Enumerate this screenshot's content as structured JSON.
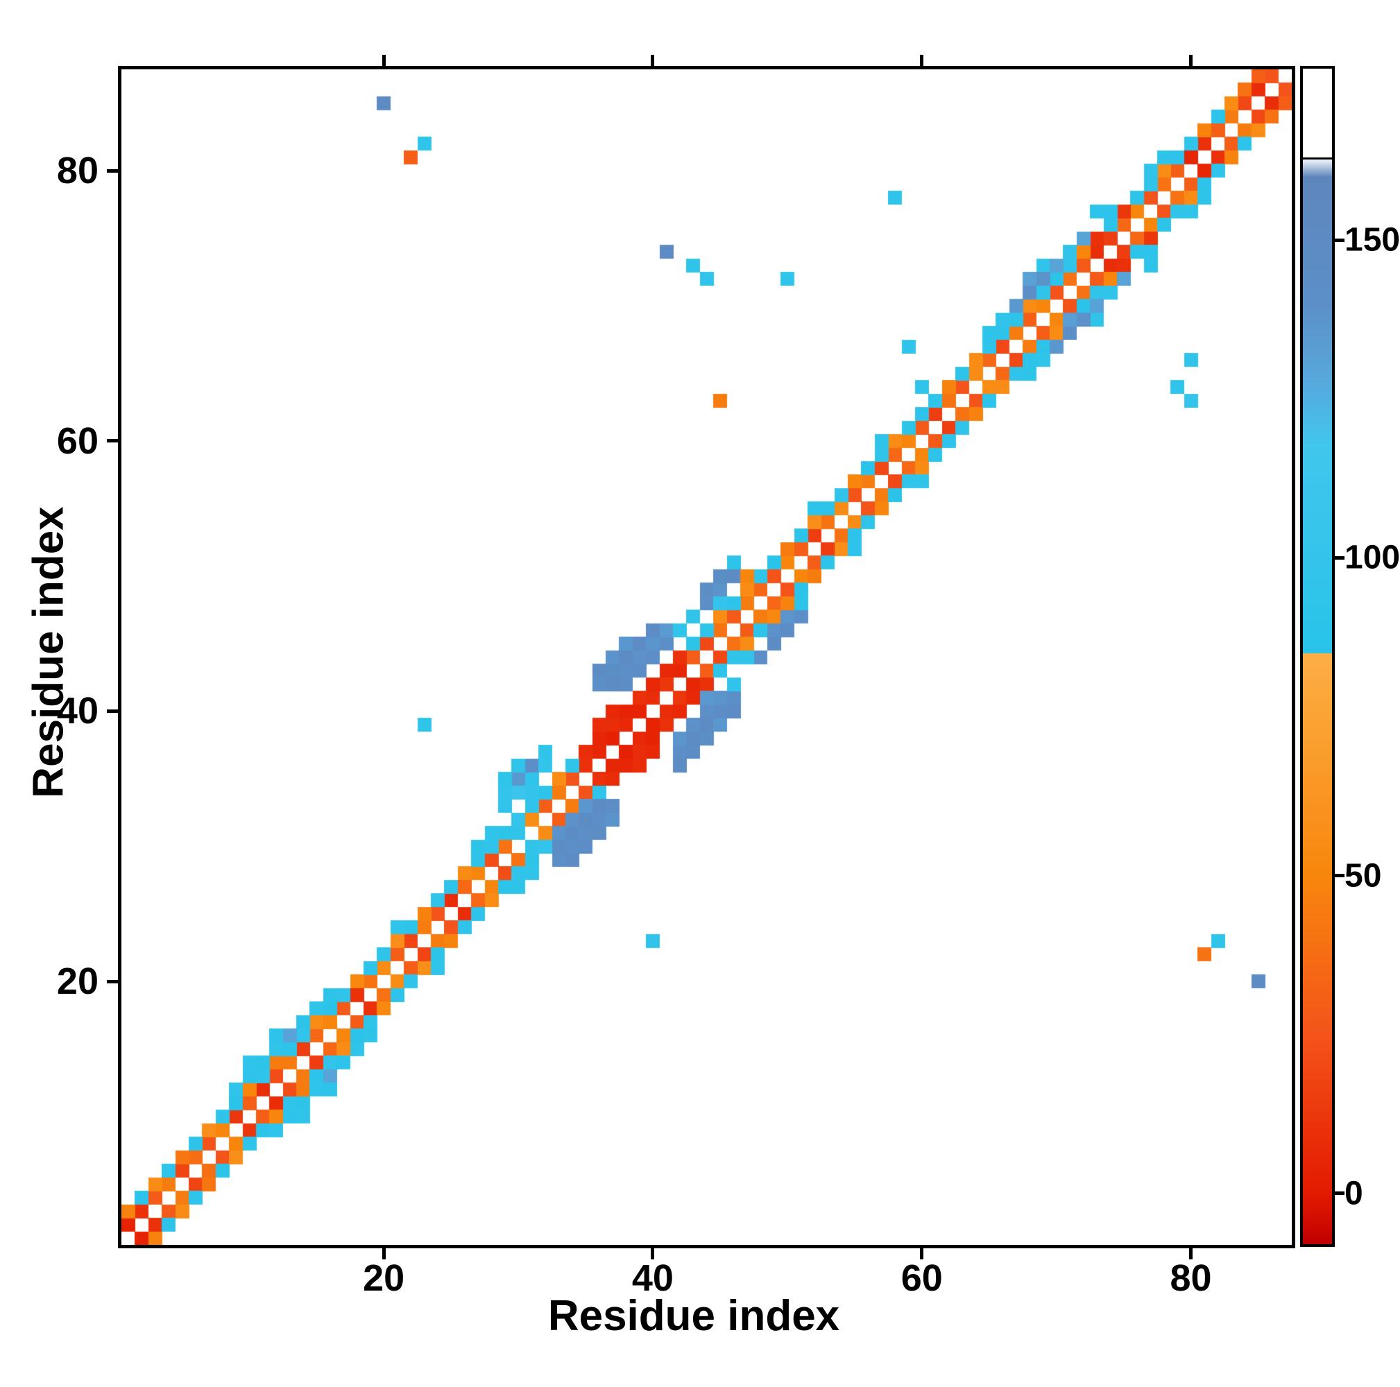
{
  "figure": {
    "xlabel": "Residue index",
    "ylabel": "Residue index"
  },
  "chart_data": {
    "type": "heatmap",
    "title": "",
    "xlabel": "Residue index",
    "ylabel": "Residue index",
    "x_ticks": [
      20,
      40,
      60,
      80
    ],
    "y_ticks": [
      20,
      40,
      60,
      80
    ],
    "n_residues": 87,
    "axis_range": [
      0.5,
      87.5
    ],
    "grid": false,
    "legend_position": "right-colorbar",
    "colorbar": {
      "ticks": [
        0,
        50,
        100,
        150
      ],
      "range": [
        -8,
        177
      ],
      "stops": [
        [
          -8,
          "#c00000"
        ],
        [
          0,
          "#e41a00"
        ],
        [
          25,
          "#f4541a"
        ],
        [
          50,
          "#f8860d"
        ],
        [
          85,
          "#fcaf46"
        ],
        [
          85.01,
          "#29c3ea"
        ],
        [
          118,
          "#41c6ec"
        ],
        [
          128,
          "#57a8dc"
        ],
        [
          140,
          "#5c8fc8"
        ],
        [
          160,
          "#5e86bd"
        ],
        [
          163,
          "#ffffff"
        ],
        [
          177,
          "#ffffff"
        ]
      ],
      "separator_value": 163
    },
    "band_cells_symmetric": [
      [
        1,
        2,
        4
      ],
      [
        2,
        3,
        10
      ],
      [
        3,
        4,
        28
      ],
      [
        4,
        5,
        45
      ],
      [
        5,
        6,
        18
      ],
      [
        6,
        7,
        38
      ],
      [
        7,
        8,
        25
      ],
      [
        8,
        9,
        50
      ],
      [
        9,
        10,
        12
      ],
      [
        10,
        11,
        30
      ],
      [
        11,
        12,
        8
      ],
      [
        12,
        13,
        22
      ],
      [
        13,
        14,
        45
      ],
      [
        14,
        15,
        15
      ],
      [
        15,
        16,
        35
      ],
      [
        16,
        17,
        50
      ],
      [
        17,
        18,
        28
      ],
      [
        18,
        19,
        10
      ],
      [
        19,
        20,
        40
      ],
      [
        20,
        21,
        55
      ],
      [
        21,
        22,
        30
      ],
      [
        22,
        23,
        18
      ],
      [
        23,
        24,
        45
      ],
      [
        24,
        25,
        25
      ],
      [
        25,
        26,
        8
      ],
      [
        26,
        27,
        35
      ],
      [
        27,
        28,
        50
      ],
      [
        28,
        29,
        22
      ],
      [
        29,
        30,
        40
      ],
      [
        30,
        31,
        95
      ],
      [
        31,
        32,
        55
      ],
      [
        32,
        33,
        30
      ],
      [
        33,
        34,
        45
      ],
      [
        34,
        35,
        25
      ],
      [
        35,
        36,
        10
      ],
      [
        36,
        37,
        5
      ],
      [
        37,
        38,
        3
      ],
      [
        38,
        39,
        6
      ],
      [
        39,
        40,
        4
      ],
      [
        40,
        41,
        8
      ],
      [
        41,
        42,
        12
      ],
      [
        42,
        43,
        5
      ],
      [
        43,
        44,
        30
      ],
      [
        44,
        45,
        20
      ],
      [
        45,
        46,
        40
      ],
      [
        46,
        47,
        28
      ],
      [
        47,
        48,
        45
      ],
      [
        48,
        49,
        35
      ],
      [
        49,
        50,
        25
      ],
      [
        50,
        51,
        50
      ],
      [
        51,
        52,
        30
      ],
      [
        52,
        53,
        15
      ],
      [
        53,
        54,
        40
      ],
      [
        54,
        55,
        55
      ],
      [
        55,
        56,
        25
      ],
      [
        56,
        57,
        45
      ],
      [
        57,
        58,
        20
      ],
      [
        58,
        59,
        35
      ],
      [
        59,
        60,
        50
      ],
      [
        60,
        61,
        28
      ],
      [
        61,
        62,
        15
      ],
      [
        62,
        63,
        40
      ],
      [
        63,
        64,
        25
      ],
      [
        64,
        65,
        55
      ],
      [
        65,
        66,
        35
      ],
      [
        66,
        67,
        20
      ],
      [
        67,
        68,
        45
      ],
      [
        68,
        69,
        30
      ],
      [
        69,
        70,
        50
      ],
      [
        70,
        71,
        25
      ],
      [
        71,
        72,
        40
      ],
      [
        72,
        73,
        28
      ],
      [
        73,
        74,
        8
      ],
      [
        74,
        75,
        15
      ],
      [
        75,
        76,
        35
      ],
      [
        76,
        77,
        50
      ],
      [
        77,
        78,
        25
      ],
      [
        78,
        79,
        40
      ],
      [
        79,
        80,
        30
      ],
      [
        80,
        81,
        5
      ],
      [
        81,
        82,
        10
      ],
      [
        82,
        83,
        30
      ],
      [
        83,
        84,
        45
      ],
      [
        84,
        85,
        20
      ],
      [
        85,
        86,
        8
      ],
      [
        86,
        87,
        25
      ],
      [
        1,
        3,
        48
      ],
      [
        2,
        4,
        90
      ],
      [
        3,
        5,
        55
      ],
      [
        4,
        6,
        95
      ],
      [
        5,
        7,
        42
      ],
      [
        6,
        8,
        92
      ],
      [
        7,
        9,
        58
      ],
      [
        8,
        10,
        95
      ],
      [
        9,
        11,
        88
      ],
      [
        10,
        12,
        50
      ],
      [
        11,
        13,
        95
      ],
      [
        12,
        14,
        45
      ],
      [
        13,
        15,
        90
      ],
      [
        14,
        16,
        98
      ],
      [
        15,
        17,
        55
      ],
      [
        16,
        18,
        88
      ],
      [
        17,
        19,
        95
      ],
      [
        18,
        20,
        52
      ],
      [
        19,
        21,
        90
      ],
      [
        20,
        22,
        95
      ],
      [
        21,
        23,
        58
      ],
      [
        22,
        24,
        92
      ],
      [
        23,
        25,
        48
      ],
      [
        24,
        26,
        95
      ],
      [
        25,
        27,
        90
      ],
      [
        26,
        28,
        55
      ],
      [
        27,
        29,
        90
      ],
      [
        28,
        30,
        95
      ],
      [
        29,
        31,
        92
      ],
      [
        30,
        32,
        98
      ],
      [
        31,
        33,
        95
      ],
      [
        32,
        34,
        90
      ],
      [
        33,
        35,
        55
      ],
      [
        34,
        36,
        95
      ],
      [
        35,
        37,
        8
      ],
      [
        36,
        38,
        5
      ],
      [
        37,
        39,
        8
      ],
      [
        38,
        40,
        4
      ],
      [
        39,
        41,
        10
      ],
      [
        40,
        42,
        6
      ],
      [
        41,
        43,
        6
      ],
      [
        42,
        44,
        10
      ],
      [
        43,
        45,
        92
      ],
      [
        44,
        46,
        95
      ],
      [
        45,
        47,
        55
      ],
      [
        46,
        48,
        90
      ],
      [
        47,
        49,
        52
      ],
      [
        48,
        50,
        95
      ],
      [
        49,
        51,
        88
      ],
      [
        50,
        52,
        45
      ],
      [
        51,
        53,
        92
      ],
      [
        52,
        54,
        58
      ],
      [
        53,
        55,
        90
      ],
      [
        54,
        56,
        95
      ],
      [
        55,
        57,
        50
      ],
      [
        56,
        58,
        88
      ],
      [
        57,
        59,
        95
      ],
      [
        58,
        60,
        55
      ],
      [
        59,
        61,
        92
      ],
      [
        60,
        62,
        90
      ],
      [
        61,
        63,
        95
      ],
      [
        62,
        64,
        48
      ],
      [
        63,
        65,
        90
      ],
      [
        64,
        66,
        55
      ],
      [
        65,
        67,
        95
      ],
      [
        66,
        68,
        90
      ],
      [
        67,
        69,
        92
      ],
      [
        68,
        70,
        55
      ],
      [
        69,
        71,
        95
      ],
      [
        70,
        72,
        88
      ],
      [
        71,
        73,
        95
      ],
      [
        72,
        74,
        50
      ],
      [
        73,
        75,
        10
      ],
      [
        74,
        76,
        90
      ],
      [
        75,
        77,
        12
      ],
      [
        76,
        78,
        92
      ],
      [
        77,
        79,
        95
      ],
      [
        78,
        80,
        55
      ],
      [
        79,
        81,
        90
      ],
      [
        80,
        82,
        95
      ],
      [
        81,
        83,
        48
      ],
      [
        82,
        84,
        90
      ],
      [
        83,
        85,
        55
      ],
      [
        84,
        86,
        40
      ],
      [
        85,
        87,
        30
      ],
      [
        9,
        12,
        95
      ],
      [
        10,
        13,
        90
      ],
      [
        11,
        14,
        92
      ],
      [
        12,
        15,
        95
      ],
      [
        13,
        16,
        130
      ],
      [
        14,
        17,
        90
      ],
      [
        15,
        18,
        95
      ],
      [
        16,
        19,
        92
      ],
      [
        21,
        24,
        95
      ],
      [
        27,
        30,
        92
      ],
      [
        28,
        31,
        95
      ],
      [
        52,
        55,
        90
      ],
      [
        57,
        60,
        95
      ],
      [
        65,
        68,
        92
      ],
      [
        66,
        69,
        95
      ],
      [
        67,
        70,
        135
      ],
      [
        68,
        71,
        90
      ],
      [
        69,
        72,
        95
      ],
      [
        70,
        73,
        92
      ],
      [
        71,
        74,
        95
      ],
      [
        72,
        75,
        130
      ],
      [
        74,
        77,
        90
      ],
      [
        77,
        80,
        95
      ],
      [
        78,
        81,
        92
      ],
      [
        10,
        14,
        95
      ],
      [
        12,
        16,
        90
      ],
      [
        69,
        73,
        95
      ],
      [
        73,
        77,
        90
      ]
    ],
    "cells": [
      [
        33,
        29,
        140
      ],
      [
        33,
        30,
        145
      ],
      [
        33,
        31,
        138
      ],
      [
        34,
        29,
        150
      ],
      [
        34,
        30,
        142
      ],
      [
        34,
        31,
        146
      ],
      [
        34,
        32,
        139
      ],
      [
        35,
        30,
        144
      ],
      [
        35,
        31,
        140
      ],
      [
        35,
        32,
        147
      ],
      [
        35,
        33,
        136
      ],
      [
        36,
        31,
        143
      ],
      [
        36,
        32,
        141
      ],
      [
        36,
        33,
        148
      ],
      [
        37,
        32,
        138
      ],
      [
        37,
        33,
        144
      ],
      [
        29,
        33,
        95
      ],
      [
        29,
        34,
        98
      ],
      [
        30,
        34,
        110
      ],
      [
        30,
        35,
        135
      ],
      [
        30,
        36,
        96
      ],
      [
        31,
        35,
        94
      ],
      [
        31,
        36,
        140
      ],
      [
        32,
        36,
        97
      ],
      [
        32,
        37,
        95
      ],
      [
        31,
        34,
        100
      ],
      [
        29,
        35,
        93
      ],
      [
        36,
        42,
        140
      ],
      [
        36,
        43,
        146
      ],
      [
        37,
        42,
        150
      ],
      [
        37,
        43,
        143
      ],
      [
        37,
        44,
        138
      ],
      [
        38,
        42,
        145
      ],
      [
        38,
        43,
        141
      ],
      [
        38,
        44,
        148
      ],
      [
        38,
        45,
        136
      ],
      [
        39,
        43,
        144
      ],
      [
        39,
        44,
        139
      ],
      [
        39,
        45,
        147
      ],
      [
        40,
        44,
        142
      ],
      [
        40,
        45,
        137
      ],
      [
        40,
        46,
        145
      ],
      [
        41,
        45,
        140
      ],
      [
        41,
        46,
        134
      ],
      [
        42,
        46,
        95
      ],
      [
        42,
        36,
        148
      ],
      [
        42,
        37,
        141
      ],
      [
        42,
        38,
        137
      ],
      [
        43,
        37,
        145
      ],
      [
        43,
        38,
        150
      ],
      [
        43,
        39,
        139
      ],
      [
        44,
        38,
        143
      ],
      [
        44,
        39,
        146
      ],
      [
        44,
        40,
        140
      ],
      [
        45,
        39,
        136
      ],
      [
        45,
        40,
        144
      ],
      [
        45,
        41,
        138
      ],
      [
        46,
        40,
        147
      ],
      [
        46,
        41,
        142
      ],
      [
        46,
        42,
        96
      ],
      [
        44,
        41,
        135
      ],
      [
        36,
        39,
        8
      ],
      [
        37,
        40,
        6
      ],
      [
        39,
        36,
        8
      ],
      [
        40,
        37,
        6
      ],
      [
        44,
        48,
        140
      ],
      [
        44,
        49,
        145
      ],
      [
        45,
        49,
        138
      ],
      [
        45,
        50,
        143
      ],
      [
        46,
        50,
        148
      ],
      [
        43,
        47,
        95
      ],
      [
        46,
        51,
        92
      ],
      [
        45,
        48,
        100
      ],
      [
        47,
        50,
        50
      ],
      [
        47,
        49,
        55
      ],
      [
        48,
        44,
        142
      ],
      [
        49,
        45,
        146
      ],
      [
        49,
        46,
        139
      ],
      [
        50,
        46,
        144
      ],
      [
        50,
        47,
        137
      ],
      [
        51,
        47,
        141
      ],
      [
        47,
        44,
        95
      ],
      [
        51,
        48,
        90
      ],
      [
        50,
        48,
        48
      ],
      [
        67,
        70,
        135
      ],
      [
        68,
        71,
        140
      ],
      [
        68,
        72,
        132
      ],
      [
        69,
        72,
        138
      ],
      [
        70,
        73,
        130
      ],
      [
        70,
        67,
        136
      ],
      [
        71,
        68,
        141
      ],
      [
        71,
        69,
        133
      ],
      [
        72,
        69,
        139
      ],
      [
        73,
        70,
        131
      ],
      [
        20,
        85,
        150
      ],
      [
        22,
        81,
        30
      ],
      [
        23,
        82,
        95
      ],
      [
        41,
        74,
        150
      ],
      [
        43,
        73,
        95
      ],
      [
        44,
        72,
        95
      ],
      [
        50,
        72,
        95
      ],
      [
        45,
        63,
        45
      ],
      [
        59,
        67,
        95
      ],
      [
        60,
        64,
        95
      ],
      [
        80,
        66,
        95
      ],
      [
        79,
        64,
        95
      ],
      [
        80,
        63,
        100
      ],
      [
        85,
        20,
        150
      ],
      [
        81,
        22,
        40
      ],
      [
        82,
        23,
        95
      ],
      [
        40,
        23,
        95
      ],
      [
        23,
        39,
        95
      ],
      [
        58,
        78,
        95
      ]
    ]
  }
}
